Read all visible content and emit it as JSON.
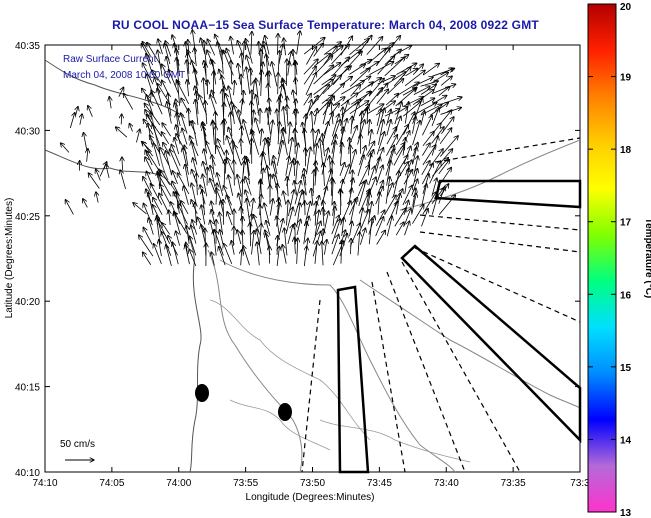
{
  "title": "RU COOL  NOAA−15  Sea Surface Temperature:  March 04, 2008 0922 GMT",
  "legend": {
    "line1": "Raw Surface Current",
    "line2": "March 04, 2008 10:00 GMT",
    "scale_label": "50 cm/s"
  },
  "axes": {
    "xlabel": "Longitude (Degrees:Minutes)",
    "ylabel": "Latitude (Degrees:Minutes)",
    "xticks": [
      "74:10",
      "74:05",
      "74:00",
      "73:55",
      "73:50",
      "73:45",
      "73:40",
      "73:35",
      "73:3"
    ],
    "yticks": [
      "40:35",
      "40:30",
      "40:25",
      "40:20",
      "40:15",
      "40:10"
    ]
  },
  "colorbar": {
    "label": "Temperature (°C)",
    "ticks": [
      "20",
      "19",
      "18",
      "17",
      "16",
      "15",
      "14",
      "13"
    ],
    "min": 13,
    "max": 20,
    "colors": [
      "#ff33cc",
      "#b36ad9",
      "#0000ff",
      "#008cff",
      "#00e0ff",
      "#00ff80",
      "#80ff00",
      "#ffff00",
      "#ffcc00",
      "#ff8000",
      "#ff2000",
      "#b30000"
    ]
  },
  "colors": {
    "title": "#1a1aa8",
    "annotation": "#1a1aa8",
    "coast": "#555555",
    "contour": "#888888"
  }
}
